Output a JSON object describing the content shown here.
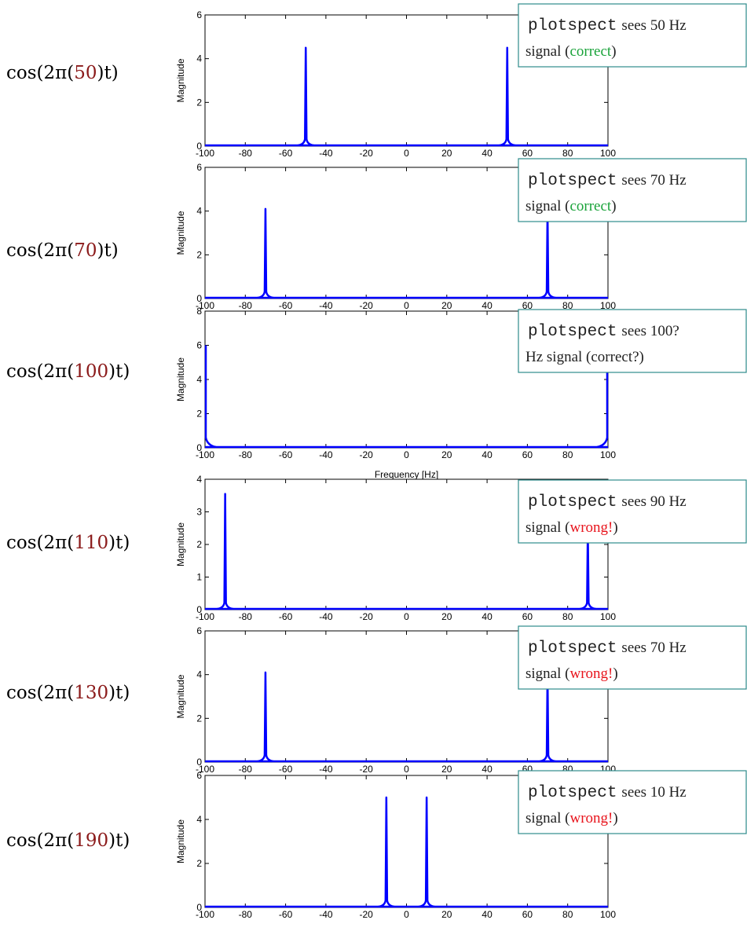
{
  "colors": {
    "trace": "#0000ff",
    "frequency_value": "#8b1a1a",
    "correct": "#1aa33a",
    "wrong": "#e8141c",
    "callout_border": "#2e8b8b"
  },
  "x_ticks": [
    "-100",
    "-80",
    "-60",
    "-40",
    "-20",
    "0",
    "20",
    "40",
    "60",
    "80",
    "100"
  ],
  "ylabel": "Magnitude",
  "chart_data": [
    {
      "type": "line",
      "row_label": {
        "prefix": "cos(2π(",
        "freq": "50",
        "suffix": ")t)"
      },
      "xlim": [
        -100,
        100
      ],
      "ylim": [
        0,
        6
      ],
      "yticks": [
        "0",
        "2",
        "4",
        "6"
      ],
      "xlabel": "",
      "peaks": [
        {
          "x": -50,
          "y": 4.5
        },
        {
          "x": 50,
          "y": 4.5
        }
      ],
      "callout": {
        "cmd": "plotspect",
        "line1": "sees 50 Hz",
        "pre": "signal (",
        "status": "correct",
        "status_type": "correct",
        "post": ")"
      }
    },
    {
      "type": "line",
      "row_label": {
        "prefix": "cos(2π(",
        "freq": "70",
        "suffix": ")t)"
      },
      "xlim": [
        -100,
        100
      ],
      "ylim": [
        0,
        6
      ],
      "yticks": [
        "0",
        "2",
        "4",
        "6"
      ],
      "xlabel": "",
      "peaks": [
        {
          "x": -70,
          "y": 4.1
        },
        {
          "x": 70,
          "y": 4.1
        }
      ],
      "callout": {
        "cmd": "plotspect",
        "line1": "sees 70 Hz",
        "pre": "signal (",
        "status": "correct",
        "status_type": "correct",
        "post": ")"
      }
    },
    {
      "type": "line",
      "row_label": {
        "prefix": "cos(2π(",
        "freq": "100",
        "suffix": ")t)"
      },
      "xlim": [
        -100,
        100
      ],
      "ylim": [
        0,
        8
      ],
      "yticks": [
        "0",
        "2",
        "4",
        "6",
        "8"
      ],
      "xlabel": "Frequency [Hz]",
      "peaks": [
        {
          "x": -100,
          "y": 6.0
        },
        {
          "x": 100,
          "y": 4.6
        }
      ],
      "callout": {
        "cmd": "plotspect",
        "line1": "sees 100?",
        "pre": "Hz signal (correct?)",
        "status": "",
        "status_type": "none",
        "post": ""
      }
    },
    {
      "type": "line",
      "row_label": {
        "prefix": "cos(2π(",
        "freq": "110",
        "suffix": ")t)"
      },
      "xlim": [
        -100,
        100
      ],
      "ylim": [
        0,
        4
      ],
      "yticks": [
        "0",
        "1",
        "2",
        "3",
        "4"
      ],
      "xlabel": "",
      "peaks": [
        {
          "x": -90,
          "y": 3.55
        },
        {
          "x": 90,
          "y": 2.5
        }
      ],
      "callout": {
        "cmd": "plotspect",
        "line1": "sees 90 Hz",
        "pre": "signal (",
        "status": "wrong!",
        "status_type": "wrong",
        "post": ")"
      }
    },
    {
      "type": "line",
      "row_label": {
        "prefix": "cos(2π(",
        "freq": "130",
        "suffix": ")t)"
      },
      "xlim": [
        -100,
        100
      ],
      "ylim": [
        0,
        6
      ],
      "yticks": [
        "0",
        "2",
        "4",
        "6"
      ],
      "xlabel": "",
      "peaks": [
        {
          "x": -70,
          "y": 4.1
        },
        {
          "x": 70,
          "y": 4.1
        }
      ],
      "callout": {
        "cmd": "plotspect",
        "line1": "sees 70 Hz",
        "pre": "signal (",
        "status": "wrong!",
        "status_type": "wrong",
        "post": ")"
      }
    },
    {
      "type": "line",
      "row_label": {
        "prefix": "cos(2π(",
        "freq": "190",
        "suffix": ")t)"
      },
      "xlim": [
        -100,
        100
      ],
      "ylim": [
        0,
        6
      ],
      "yticks": [
        "0",
        "2",
        "4",
        "6"
      ],
      "xlabel": "",
      "peaks": [
        {
          "x": -10,
          "y": 5.0
        },
        {
          "x": 10,
          "y": 5.0
        }
      ],
      "callout": {
        "cmd": "plotspect",
        "line1": "sees 10 Hz",
        "pre": "signal (",
        "status": "wrong!",
        "status_type": "wrong",
        "post": ")"
      }
    }
  ]
}
